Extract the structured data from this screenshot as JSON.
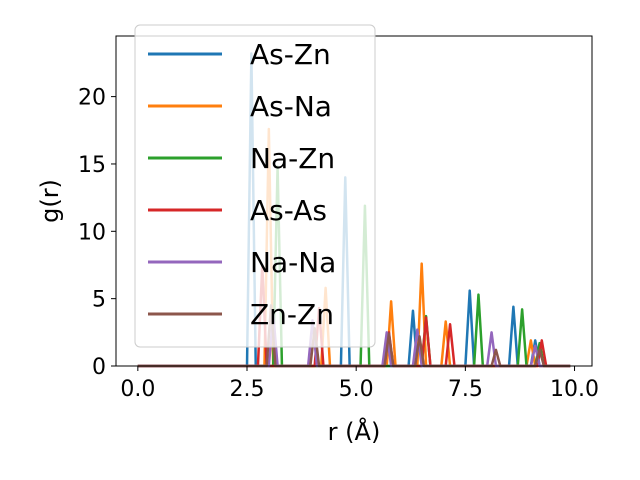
{
  "chart_data": {
    "type": "line",
    "title": "",
    "xlabel": "r (Å)",
    "ylabel": "g(r)",
    "xlim": [
      -0.5,
      10.4
    ],
    "ylim": [
      0,
      24.5
    ],
    "xticks": [
      0.0,
      2.5,
      5.0,
      7.5,
      10.0
    ],
    "xtick_labels": [
      "0.0",
      "2.5",
      "5.0",
      "7.5",
      "10.0"
    ],
    "yticks": [
      0,
      5,
      10,
      15,
      20
    ],
    "ytick_labels": [
      "0",
      "5",
      "10",
      "15",
      "20"
    ],
    "grid": false,
    "legend": "upper-left",
    "x_range": [
      0,
      9.9
    ],
    "series": [
      {
        "name": "As-Zn",
        "color": "#1f77b4",
        "peaks": [
          [
            2.6,
            23.2
          ],
          [
            4.75,
            14.0
          ],
          [
            6.3,
            4.1
          ],
          [
            7.6,
            5.6
          ],
          [
            8.6,
            4.4
          ],
          [
            9.1,
            1.9
          ]
        ]
      },
      {
        "name": "As-Na",
        "color": "#ff7f0e",
        "peaks": [
          [
            3.0,
            17.6
          ],
          [
            4.3,
            5.8
          ],
          [
            5.8,
            4.8
          ],
          [
            6.5,
            7.6
          ],
          [
            7.05,
            3.3
          ],
          [
            9.0,
            1.9
          ]
        ]
      },
      {
        "name": "Na-Zn",
        "color": "#2ca02c",
        "peaks": [
          [
            3.2,
            14.8
          ],
          [
            5.2,
            11.9
          ],
          [
            6.6,
            3.7
          ],
          [
            7.8,
            5.3
          ],
          [
            8.8,
            4.2
          ],
          [
            9.2,
            1.7
          ]
        ]
      },
      {
        "name": "As-As",
        "color": "#d62728",
        "peaks": [
          [
            2.85,
            7.5
          ],
          [
            4.15,
            4.3
          ],
          [
            5.75,
            2.5
          ],
          [
            6.6,
            3.6
          ],
          [
            7.15,
            3.1
          ],
          [
            9.25,
            1.9
          ]
        ]
      },
      {
        "name": "Na-Na",
        "color": "#9467bd",
        "peaks": [
          [
            3.1,
            3.9
          ],
          [
            4.0,
            3.4
          ],
          [
            5.7,
            2.5
          ],
          [
            6.4,
            2.7
          ],
          [
            8.1,
            2.5
          ],
          [
            9.1,
            1.5
          ]
        ]
      },
      {
        "name": "Zn-Zn",
        "color": "#8c564b",
        "peaks": [
          [
            3.05,
            4.5
          ],
          [
            4.05,
            2.8
          ],
          [
            5.75,
            2.4
          ],
          [
            6.45,
            2.2
          ],
          [
            8.2,
            1.2
          ],
          [
            9.2,
            1.2
          ]
        ]
      }
    ]
  }
}
